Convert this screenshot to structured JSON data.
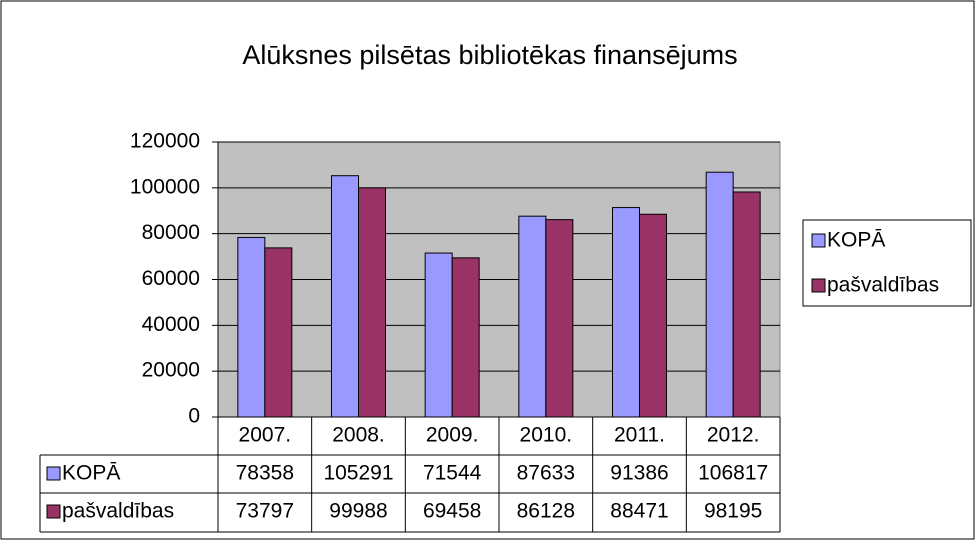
{
  "chart_data": {
    "type": "bar",
    "title": "Alūksnes pilsētas bibliotēkas finansējums",
    "categories": [
      "2007.",
      "2008.",
      "2009.",
      "2010.",
      "2011.",
      "2012."
    ],
    "series": [
      {
        "name": "KOPĀ",
        "color": "#9999ff",
        "values": [
          78358,
          105291,
          71544,
          87633,
          91386,
          106817
        ]
      },
      {
        "name": "pašvaldības",
        "color": "#993366",
        "values": [
          73797,
          99988,
          69458,
          86128,
          88471,
          98195
        ]
      }
    ],
    "ylim": [
      0,
      120000
    ],
    "yticks": [
      0,
      20000,
      40000,
      60000,
      80000,
      100000,
      120000
    ],
    "grid": true,
    "legend": "right",
    "data_table": true
  }
}
